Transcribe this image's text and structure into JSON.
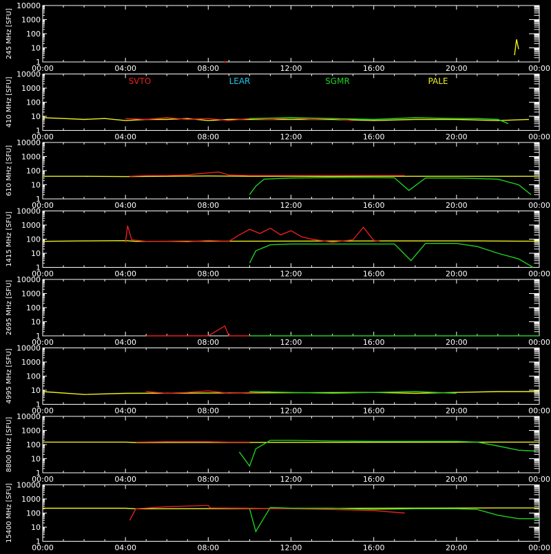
{
  "colors": {
    "background": "#000000",
    "axis": "#ffffff",
    "SVTO": "#e8201e",
    "LEAR": "#1ec8e8",
    "SGMR": "#20d020",
    "PALE": "#f0f020"
  },
  "legend": [
    {
      "name": "SVTO",
      "color": "#e8201e"
    },
    {
      "name": "LEAR",
      "color": "#1ec8e8"
    },
    {
      "name": "SGMR",
      "color": "#20d020"
    },
    {
      "name": "PALE",
      "color": "#f0f020"
    }
  ],
  "chart_data": {
    "type": "line",
    "ylabel_unit": "[SFU]",
    "y_scale": "log",
    "ylim": [
      1,
      10000
    ],
    "xlim": [
      0,
      24
    ],
    "x_ticks": [
      "00:00",
      "04:00",
      "08:00",
      "12:00",
      "16:00",
      "20:00",
      "00:00"
    ],
    "y_ticks": [
      "1",
      "10",
      "100",
      "1000",
      "10000"
    ],
    "panels": [
      {
        "label": "245 MHz",
        "series": [
          {
            "name": "PALE",
            "x": [
              22.8,
              22.9,
              23.0
            ],
            "y": [
              3,
              40,
              8
            ]
          },
          {
            "name": "SVTO",
            "x": [
              8.8
            ],
            "y": [
              1
            ]
          }
        ]
      },
      {
        "label": "410 MHz",
        "series": [
          {
            "name": "PALE",
            "x": [
              0,
              1,
              2,
              3,
              4,
              5,
              6,
              7,
              8,
              9,
              10,
              12,
              14,
              16,
              18,
              20,
              22,
              23.5
            ],
            "y": [
              8,
              7,
              6,
              7,
              5,
              6,
              6,
              7,
              5,
              6,
              6,
              6,
              6,
              5,
              6,
              6,
              5,
              6
            ]
          },
          {
            "name": "SVTO",
            "x": [
              4,
              5,
              6,
              7,
              8,
              9,
              10,
              11,
              12,
              13,
              14,
              15
            ],
            "y": [
              7,
              6,
              8,
              6,
              7,
              5,
              7,
              6,
              8,
              6,
              7,
              5
            ]
          },
          {
            "name": "SGMR",
            "x": [
              10,
              12,
              14,
              16,
              18,
              20,
              21,
              22,
              22.5
            ],
            "y": [
              7,
              8,
              7,
              6,
              8,
              7,
              7,
              6,
              3
            ]
          }
        ]
      },
      {
        "label": "610 MHz",
        "series": [
          {
            "name": "PALE",
            "x": [
              0,
              2,
              4,
              6,
              8,
              10,
              12,
              14,
              16,
              18,
              20,
              22,
              24
            ],
            "y": [
              40,
              40,
              38,
              40,
              42,
              40,
              40,
              39,
              40,
              40,
              40,
              40,
              40
            ]
          },
          {
            "name": "SVTO",
            "x": [
              4.2,
              5,
              6,
              7,
              7.5,
              8,
              8.5,
              9,
              10,
              12,
              14,
              16,
              17.5
            ],
            "y": [
              40,
              45,
              45,
              50,
              60,
              70,
              80,
              50,
              45,
              45,
              45,
              45,
              45
            ]
          },
          {
            "name": "SGMR",
            "x": [
              10,
              10.3,
              10.7,
              12,
              14,
              16,
              17,
              17.7,
              18.5,
              20,
              22,
              23,
              23.6
            ],
            "y": [
              2,
              8,
              25,
              30,
              32,
              32,
              31,
              4,
              30,
              30,
              25,
              10,
              2
            ]
          }
        ]
      },
      {
        "label": "1415 MHz",
        "series": [
          {
            "name": "PALE",
            "x": [
              0,
              2,
              4,
              4.5,
              17,
              19,
              21,
              23,
              24
            ],
            "y": [
              70,
              75,
              78,
              70,
              75,
              75,
              75,
              72,
              72
            ]
          },
          {
            "name": "SVTO",
            "x": [
              4,
              4.1,
              4.3,
              5,
              6,
              7,
              8,
              9,
              9.5,
              10,
              10.5,
              11,
              11.5,
              12,
              12.5,
              13,
              14,
              15,
              15.5,
              16,
              16.3
            ],
            "y": [
              60,
              900,
              90,
              70,
              70,
              65,
              80,
              70,
              200,
              500,
              250,
              600,
              200,
              400,
              150,
              100,
              60,
              90,
              700,
              80,
              70
            ]
          },
          {
            "name": "SGMR",
            "x": [
              10,
              10.3,
              11,
              12,
              14,
              16,
              17,
              17.8,
              18.5,
              20,
              21,
              22,
              23,
              23.7
            ],
            "y": [
              2,
              15,
              40,
              45,
              45,
              45,
              45,
              3,
              50,
              50,
              30,
              10,
              4,
              1
            ]
          }
        ]
      },
      {
        "label": "2695 MHz",
        "series": [
          {
            "name": "SVTO",
            "x": [
              5,
              8,
              8.8,
              9,
              10
            ],
            "y": [
              1,
              1,
              5,
              1,
              1
            ]
          },
          {
            "name": "SGMR",
            "x": [
              10,
              14,
              18,
              22,
              24
            ],
            "y": [
              1,
              1,
              1,
              1,
              1
            ]
          }
        ]
      },
      {
        "label": "4995 MHz",
        "series": [
          {
            "name": "PALE",
            "x": [
              0,
              2,
              4,
              16,
              18,
              20,
              22,
              24
            ],
            "y": [
              8,
              5,
              6,
              7,
              6,
              7,
              8,
              8
            ]
          },
          {
            "name": "SVTO",
            "x": [
              5,
              6,
              7,
              8,
              9,
              10,
              11
            ],
            "y": [
              8,
              6,
              7,
              9,
              6,
              7,
              8
            ]
          },
          {
            "name": "SGMR",
            "x": [
              10,
              12,
              14,
              16,
              18,
              20
            ],
            "y": [
              8,
              7,
              6,
              7,
              8,
              6
            ]
          }
        ]
      },
      {
        "label": "8800 MHz",
        "series": [
          {
            "name": "PALE",
            "x": [
              0,
              2,
              4,
              4.5,
              22,
              24
            ],
            "y": [
              150,
              150,
              150,
              140,
              150,
              150
            ]
          },
          {
            "name": "SVTO",
            "x": [
              4.5,
              6,
              8,
              9,
              10
            ],
            "y": [
              150,
              160,
              160,
              150,
              150
            ]
          },
          {
            "name": "SGMR",
            "x": [
              9.5,
              10,
              10.3,
              11,
              12,
              14,
              16,
              18,
              20,
              21,
              22,
              23,
              23.8
            ],
            "y": [
              30,
              3,
              50,
              200,
              200,
              180,
              170,
              170,
              170,
              150,
              80,
              40,
              35
            ]
          }
        ]
      },
      {
        "label": "15400 MHz",
        "series": [
          {
            "name": "PALE",
            "x": [
              0,
              2,
              4,
              4.5,
              22,
              24
            ],
            "y": [
              220,
              220,
              220,
              200,
              230,
              230
            ]
          },
          {
            "name": "SVTO",
            "x": [
              4.2,
              4.5,
              6,
              8,
              8.1,
              10,
              12,
              14,
              16,
              17.5
            ],
            "y": [
              30,
              200,
              280,
              350,
              230,
              220,
              200,
              180,
              150,
              100
            ]
          },
          {
            "name": "SGMR",
            "x": [
              10,
              10.3,
              11,
              12,
              14,
              16,
              18,
              20,
              21,
              22,
              23,
              24
            ],
            "y": [
              200,
              5,
              250,
              220,
              220,
              180,
              200,
              200,
              180,
              70,
              40,
              40
            ]
          }
        ]
      }
    ]
  }
}
